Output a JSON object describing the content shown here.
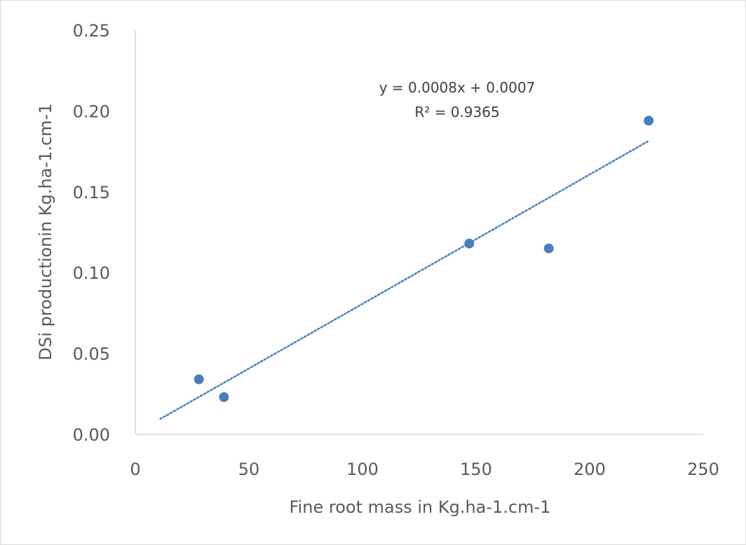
{
  "chart_data": {
    "type": "scatter",
    "title": "",
    "xlabel": "Fine root mass in Kg.ha-1.cm-1",
    "ylabel": "DSi productionin Kg.ha-1.cm-1",
    "xlim": [
      0,
      250
    ],
    "ylim": [
      0,
      0.25
    ],
    "x_ticks": [
      "0",
      "50",
      "100",
      "150",
      "200",
      "250"
    ],
    "y_ticks": [
      "0.00",
      "0.05",
      "0.10",
      "0.15",
      "0.20",
      "0.25"
    ],
    "grid": false,
    "legend": "none",
    "series": [
      {
        "color": "#4a7ebb",
        "points": [
          {
            "x": 28,
            "y": 0.034
          },
          {
            "x": 39,
            "y": 0.023
          },
          {
            "x": 147,
            "y": 0.118
          },
          {
            "x": 182,
            "y": 0.115
          },
          {
            "x": 226,
            "y": 0.194
          }
        ]
      }
    ],
    "trendline": {
      "type": "linear",
      "style": "dotted",
      "color": "#4a7ebb",
      "x_start": 11,
      "x_end": 226,
      "slope": 0.0008,
      "intercept": 0.0007
    },
    "annotations": {
      "equation": "y = 0.0008x + 0.0007",
      "r_squared": "R² = 0.9365"
    }
  }
}
